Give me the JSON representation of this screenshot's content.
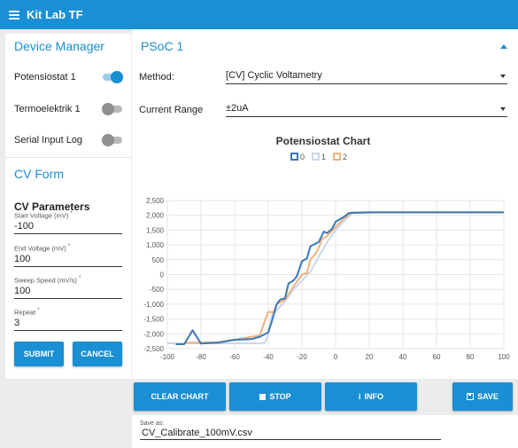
{
  "app": {
    "title": "Kit Lab TF"
  },
  "device_manager": {
    "title": "Device Manager",
    "devices": [
      {
        "label": "Potensiostat 1",
        "on": true
      },
      {
        "label": "Termoelektrik 1",
        "on": false
      },
      {
        "label": "Serial Input Log",
        "on": false
      }
    ]
  },
  "cv_form": {
    "title": "CV Form",
    "params_title": "CV Parameters",
    "fields": [
      {
        "label": "Start Voltage (mV)",
        "value": "-100"
      },
      {
        "label": "End Voltage (mV)",
        "value": "100"
      },
      {
        "label": "Sweep Speed (mV/s)",
        "value": "100"
      },
      {
        "label": "Repeat",
        "value": "3"
      }
    ],
    "required_mark": "*",
    "submit_label": "SUBMIT",
    "cancel_label": "CANCEL"
  },
  "psoc": {
    "title": "PSoC 1",
    "method_label": "Method:",
    "method_value": "[CV] Cyclic Voltametry",
    "range_label": "Current Range",
    "range_value": "±2uA"
  },
  "buttons": {
    "clear_chart": "CLEAR CHART",
    "stop": "STOP",
    "info": "INFO",
    "save": "SAVE"
  },
  "save_as": {
    "label": "Save as:",
    "value": "CV_Calibrate_100mV.csv"
  },
  "colors": {
    "accent": "#1a8fd3"
  },
  "chart_data": {
    "type": "line",
    "title": "Potensiostat Chart",
    "xlim": [
      -100,
      100
    ],
    "ylim": [
      -2500,
      2500
    ],
    "x_ticks": [
      -100,
      -80,
      -60,
      -40,
      -20,
      0,
      20,
      40,
      60,
      80,
      100
    ],
    "y_ticks": [
      2500,
      2000,
      1500,
      1000,
      500,
      0,
      -500,
      -1000,
      -1500,
      -2000,
      -2500
    ],
    "y_tick_labels": [
      "2,500",
      "2,000",
      "1,500",
      "1,000",
      "500",
      "0",
      "-500",
      "-1,000",
      "-1,500",
      "-2,000",
      "-2,500"
    ],
    "grid": true,
    "legend_position": "top",
    "series": [
      {
        "name": "0",
        "color": "#3a78b5",
        "x": [
          -95,
          -90,
          -85,
          -80,
          -70,
          -60,
          -50,
          -45,
          -40,
          -38,
          -35,
          -33,
          -30,
          -28,
          -25,
          -23,
          -20,
          -17,
          -15,
          -10,
          -7,
          -5,
          -2,
          0,
          2,
          5,
          8,
          20,
          50,
          70,
          90,
          100
        ],
        "y": [
          -2350,
          -2350,
          -1880,
          -2330,
          -2300,
          -2200,
          -2180,
          -2100,
          -1950,
          -1600,
          -1000,
          -850,
          -800,
          -300,
          -200,
          -50,
          450,
          550,
          950,
          1100,
          1450,
          1400,
          1550,
          1780,
          1850,
          1950,
          2080,
          2100,
          2100,
          2100,
          2100,
          2100
        ]
      },
      {
        "name": "1",
        "color": "#c8d7ec",
        "x": [
          -100,
          -80,
          -60,
          -45,
          -42,
          -40,
          -38,
          -35,
          -30,
          -25,
          -20,
          -15,
          -10,
          -5,
          0,
          5,
          10,
          30,
          60,
          100
        ],
        "y": [
          -2320,
          -2320,
          -2320,
          -2320,
          -2300,
          -2000,
          -1400,
          -1200,
          -900,
          -500,
          -200,
          100,
          600,
          1100,
          1500,
          1800,
          2100,
          2100,
          2100,
          2100
        ]
      },
      {
        "name": "2",
        "color": "#f0b27a",
        "x": [
          -90,
          -80,
          -70,
          -60,
          -50,
          -45,
          -42,
          -40,
          -37,
          -35,
          -30,
          -25,
          -20,
          -17,
          -15,
          -12,
          -10,
          -8,
          -5,
          0,
          5,
          10,
          30,
          60,
          100
        ],
        "y": [
          -2300,
          -2300,
          -2280,
          -2200,
          -2100,
          -2050,
          -1550,
          -1250,
          -1280,
          -1000,
          -850,
          -400,
          0,
          50,
          500,
          700,
          900,
          1200,
          1300,
          1600,
          1900,
          2080,
          2100,
          2100,
          2100
        ]
      }
    ]
  }
}
